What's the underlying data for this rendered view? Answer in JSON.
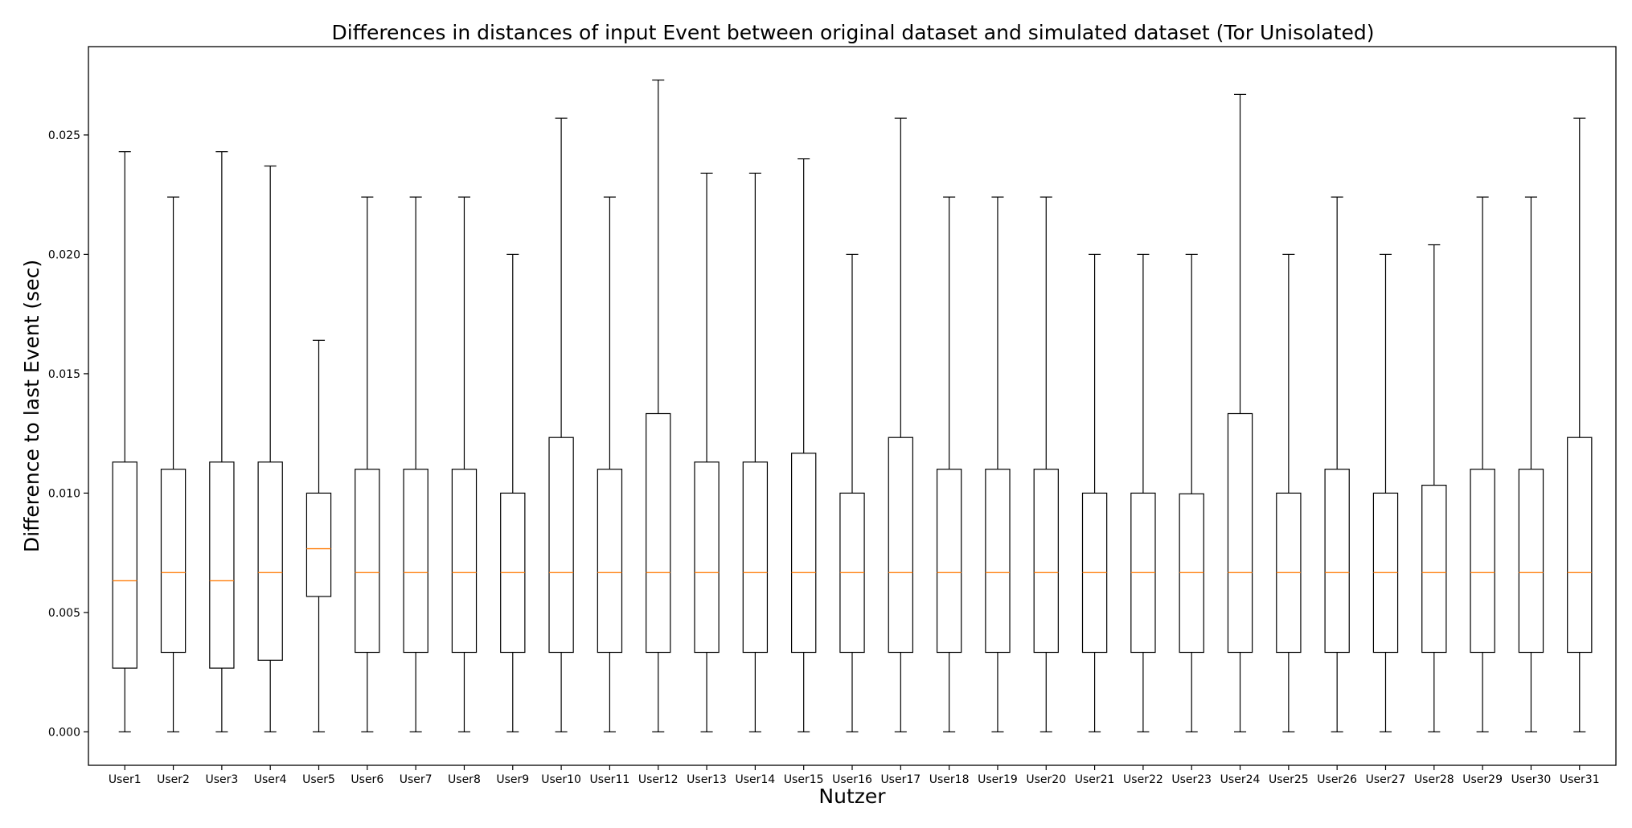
{
  "chart_data": {
    "type": "boxplot",
    "title": "Differences in distances of input Event between original dataset and simulated dataset (Tor Unisolated)",
    "xlabel": "Nutzer",
    "ylabel": "Difference to last Event (sec)",
    "ylim": [
      -0.0014,
      0.0287
    ],
    "yticks": [
      "0.000",
      "0.005",
      "0.010",
      "0.015",
      "0.020",
      "0.025"
    ],
    "grid": false,
    "colors": {
      "box": "#000000",
      "median": "#ff7f0e",
      "background": "#ffffff"
    },
    "series": [
      {
        "label": "User1",
        "whislo": 0,
        "q1": 0.00267,
        "med": 0.00633,
        "q3": 0.0113,
        "whishi": 0.0243
      },
      {
        "label": "User2",
        "whislo": 0,
        "q1": 0.00333,
        "med": 0.00667,
        "q3": 0.011,
        "whishi": 0.0224
      },
      {
        "label": "User3",
        "whislo": 0,
        "q1": 0.00267,
        "med": 0.00633,
        "q3": 0.0113,
        "whishi": 0.0243
      },
      {
        "label": "User4",
        "whislo": 0,
        "q1": 0.003,
        "med": 0.00667,
        "q3": 0.0113,
        "whishi": 0.0237
      },
      {
        "label": "User5",
        "whislo": 0,
        "q1": 0.00567,
        "med": 0.00767,
        "q3": 0.01,
        "whishi": 0.0164
      },
      {
        "label": "User6",
        "whislo": 0,
        "q1": 0.00333,
        "med": 0.00667,
        "q3": 0.011,
        "whishi": 0.0224
      },
      {
        "label": "User7",
        "whislo": 0,
        "q1": 0.00333,
        "med": 0.00667,
        "q3": 0.011,
        "whishi": 0.0224
      },
      {
        "label": "User8",
        "whislo": 0,
        "q1": 0.00333,
        "med": 0.00667,
        "q3": 0.011,
        "whishi": 0.0224
      },
      {
        "label": "User9",
        "whislo": 0,
        "q1": 0.00333,
        "med": 0.00667,
        "q3": 0.01,
        "whishi": 0.02
      },
      {
        "label": "User10",
        "whislo": 0,
        "q1": 0.00333,
        "med": 0.00667,
        "q3": 0.01233,
        "whishi": 0.0257
      },
      {
        "label": "User11",
        "whislo": 0,
        "q1": 0.00333,
        "med": 0.00667,
        "q3": 0.011,
        "whishi": 0.0224
      },
      {
        "label": "User12",
        "whislo": 0,
        "q1": 0.00333,
        "med": 0.00667,
        "q3": 0.01333,
        "whishi": 0.0273
      },
      {
        "label": "User13",
        "whislo": 0,
        "q1": 0.00333,
        "med": 0.00667,
        "q3": 0.0113,
        "whishi": 0.0234
      },
      {
        "label": "User14",
        "whislo": 0,
        "q1": 0.00333,
        "med": 0.00667,
        "q3": 0.0113,
        "whishi": 0.0234
      },
      {
        "label": "User15",
        "whislo": 0,
        "q1": 0.00333,
        "med": 0.00667,
        "q3": 0.01167,
        "whishi": 0.024
      },
      {
        "label": "User16",
        "whislo": 0,
        "q1": 0.00333,
        "med": 0.00667,
        "q3": 0.01,
        "whishi": 0.02
      },
      {
        "label": "User17",
        "whislo": 0,
        "q1": 0.00333,
        "med": 0.00667,
        "q3": 0.01233,
        "whishi": 0.0257
      },
      {
        "label": "User18",
        "whislo": 0,
        "q1": 0.00333,
        "med": 0.00667,
        "q3": 0.011,
        "whishi": 0.0224
      },
      {
        "label": "User19",
        "whislo": 0,
        "q1": 0.00333,
        "med": 0.00667,
        "q3": 0.011,
        "whishi": 0.0224
      },
      {
        "label": "User20",
        "whislo": 0,
        "q1": 0.00333,
        "med": 0.00667,
        "q3": 0.011,
        "whishi": 0.0224
      },
      {
        "label": "User21",
        "whislo": 0,
        "q1": 0.00333,
        "med": 0.00667,
        "q3": 0.01,
        "whishi": 0.02
      },
      {
        "label": "User22",
        "whislo": 0,
        "q1": 0.00333,
        "med": 0.00667,
        "q3": 0.01,
        "whishi": 0.02
      },
      {
        "label": "User23",
        "whislo": 0,
        "q1": 0.00333,
        "med": 0.00667,
        "q3": 0.00997,
        "whishi": 0.02
      },
      {
        "label": "User24",
        "whislo": 0,
        "q1": 0.00333,
        "med": 0.00667,
        "q3": 0.01333,
        "whishi": 0.0267
      },
      {
        "label": "User25",
        "whislo": 0,
        "q1": 0.00333,
        "med": 0.00667,
        "q3": 0.01,
        "whishi": 0.02
      },
      {
        "label": "User26",
        "whislo": 0,
        "q1": 0.00333,
        "med": 0.00667,
        "q3": 0.011,
        "whishi": 0.0224
      },
      {
        "label": "User27",
        "whislo": 0,
        "q1": 0.00333,
        "med": 0.00667,
        "q3": 0.01,
        "whishi": 0.02
      },
      {
        "label": "User28",
        "whislo": 0,
        "q1": 0.00333,
        "med": 0.00667,
        "q3": 0.01033,
        "whishi": 0.0204
      },
      {
        "label": "User29",
        "whislo": 0,
        "q1": 0.00333,
        "med": 0.00667,
        "q3": 0.011,
        "whishi": 0.0224
      },
      {
        "label": "User30",
        "whislo": 0,
        "q1": 0.00333,
        "med": 0.00667,
        "q3": 0.011,
        "whishi": 0.0224
      },
      {
        "label": "User31",
        "whislo": 0,
        "q1": 0.00333,
        "med": 0.00667,
        "q3": 0.01233,
        "whishi": 0.0257
      }
    ]
  }
}
